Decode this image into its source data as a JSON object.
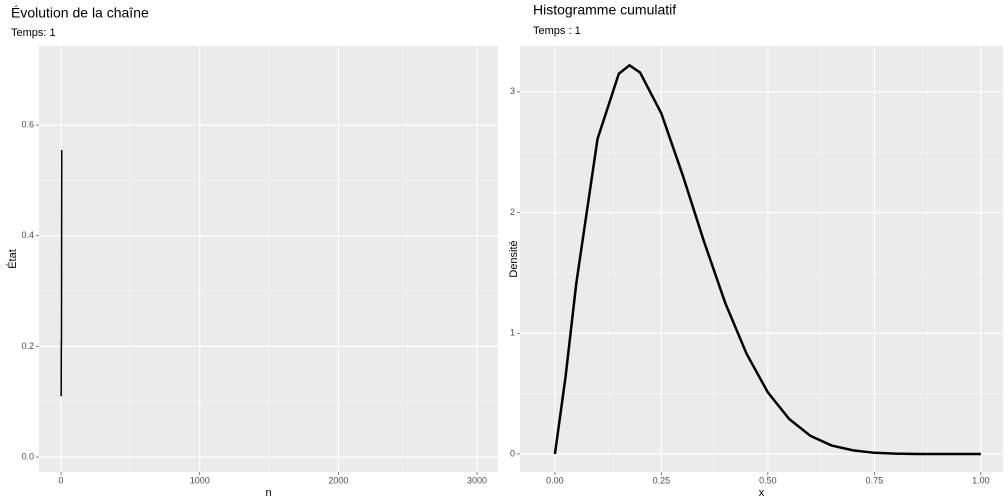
{
  "chart_data": [
    {
      "type": "line",
      "title": "Évolution de la chaîne",
      "subtitle": "Temps: 1",
      "xlabel": "n",
      "ylabel": "État",
      "x": [
        1,
        2,
        3,
        4,
        5
      ],
      "values": [
        0.11,
        0.21,
        0.2,
        0.4,
        0.555
      ],
      "color": "#000000",
      "xlim": [
        -159,
        3151
      ],
      "ylim": [
        -0.027,
        0.743
      ],
      "xticks": [
        0,
        1000,
        2000,
        3000
      ],
      "yticks": [
        {
          "value": 0,
          "label": "0.0"
        },
        {
          "value": 0.2,
          "label": "0.2"
        },
        {
          "value": 0.4,
          "label": "0.4"
        },
        {
          "value": 0.6,
          "label": "0.6"
        }
      ],
      "grid": true
    },
    {
      "type": "line",
      "title": "Histogramme cumulatif",
      "subtitle": "Temps : 1",
      "xlabel": "x",
      "ylabel": "Densité",
      "x": [
        0,
        0.025,
        0.05,
        0.1,
        0.15,
        0.175,
        0.2,
        0.25,
        0.3,
        0.35,
        0.4,
        0.45,
        0.5,
        0.55,
        0.6,
        0.65,
        0.7,
        0.75,
        0.8,
        0.85,
        0.9,
        0.95,
        1
      ],
      "values": [
        0,
        0.64,
        1.41,
        2.61,
        3.15,
        3.22,
        3.16,
        2.82,
        2.31,
        1.76,
        1.25,
        0.83,
        0.51,
        0.29,
        0.15,
        0.07,
        0.03,
        0.01,
        0.003,
        0,
        0,
        0,
        0
      ],
      "color": "#000000",
      "xlim": [
        -0.082,
        1.052
      ],
      "ylim": [
        -0.149,
        3.38
      ],
      "xticks": [
        {
          "value": 0,
          "label": "0.00"
        },
        {
          "value": 0.25,
          "label": "0.25"
        },
        {
          "value": 0.5,
          "label": "0.50"
        },
        {
          "value": 0.75,
          "label": "0.75"
        },
        {
          "value": 1,
          "label": "1.00"
        }
      ],
      "yticks": [
        0,
        1,
        2,
        3
      ],
      "grid": true
    }
  ]
}
